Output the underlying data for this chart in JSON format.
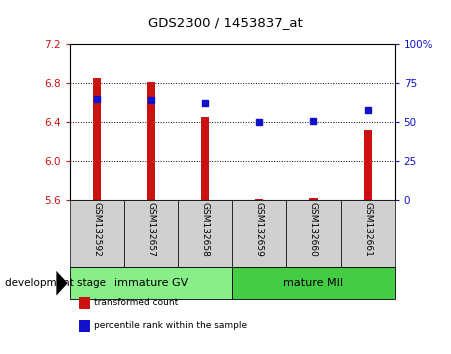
{
  "title": "GDS2300 / 1453837_at",
  "samples": [
    "GSM132592",
    "GSM132657",
    "GSM132658",
    "GSM132659",
    "GSM132660",
    "GSM132661"
  ],
  "transformed_count": [
    6.85,
    6.81,
    6.45,
    5.615,
    5.625,
    6.32
  ],
  "percentile_rank": [
    65,
    64,
    62,
    50,
    51,
    58
  ],
  "ylim_left": [
    5.6,
    7.2
  ],
  "ylim_right": [
    0,
    100
  ],
  "yticks_left": [
    5.6,
    6.0,
    6.4,
    6.8,
    7.2
  ],
  "yticks_right": [
    0,
    25,
    50,
    75,
    100
  ],
  "bar_color": "#cc1111",
  "dot_color": "#1111cc",
  "bar_bottom": 5.6,
  "groups": [
    {
      "label": "immature GV",
      "indices": [
        0,
        1,
        2
      ],
      "color": "#88ee88"
    },
    {
      "label": "mature MII",
      "indices": [
        3,
        4,
        5
      ],
      "color": "#44cc44"
    }
  ],
  "dev_stage_label": "development stage",
  "legend_items": [
    {
      "label": "transformed count",
      "color": "#cc1111"
    },
    {
      "label": "percentile rank within the sample",
      "color": "#1111cc"
    }
  ],
  "tick_color_left": "#cc1111",
  "tick_color_right": "#1111cc",
  "bg_sample": "#d0d0d0",
  "bg_plot": "#ffffff",
  "bar_width": 0.15
}
